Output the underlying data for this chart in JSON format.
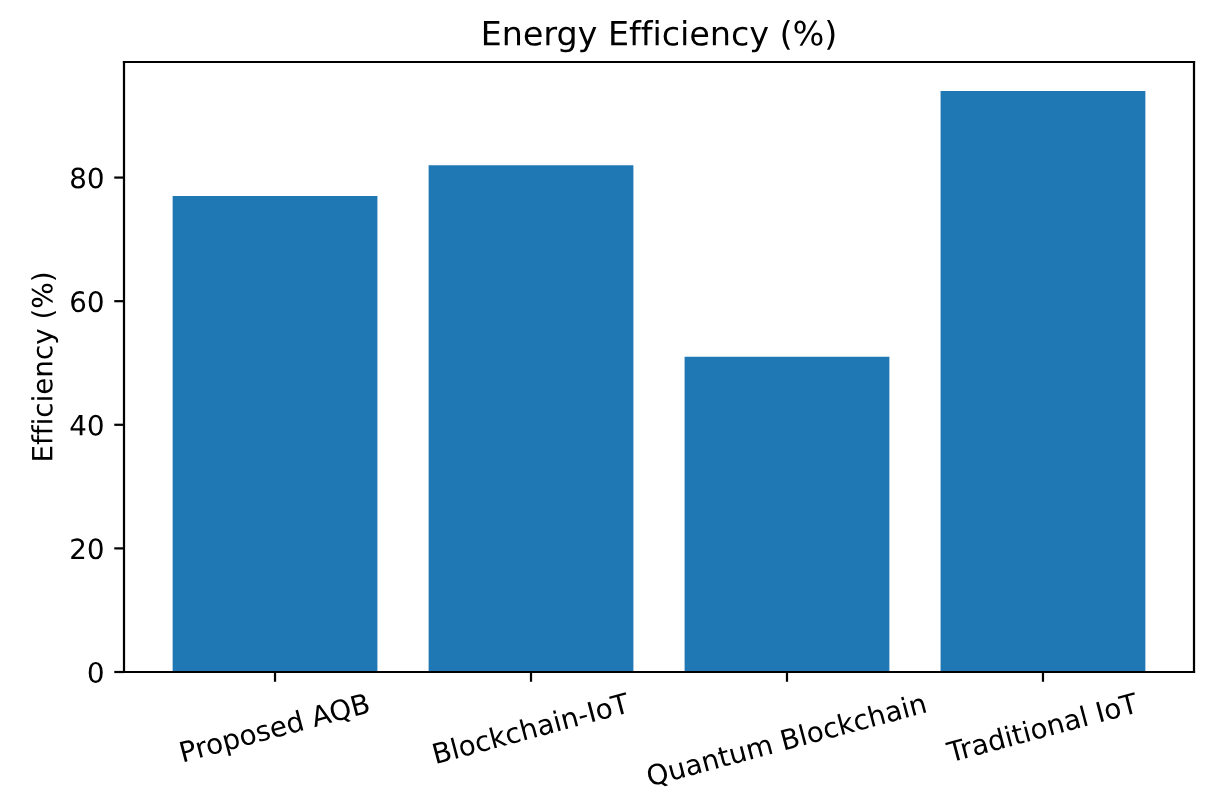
{
  "chart_data": {
    "type": "bar",
    "title": "Energy Efficiency (%)",
    "ylabel": "Efficiency (%)",
    "categories": [
      "Proposed AQB",
      "Blockchain-IoT",
      "Quantum Blockchain",
      "Traditional IoT"
    ],
    "values": [
      77,
      82,
      51,
      94
    ],
    "color": "#1f77b4",
    "ylim": [
      0,
      98.7
    ],
    "yticks": [
      0,
      20,
      40,
      60,
      80
    ],
    "grid": false
  }
}
